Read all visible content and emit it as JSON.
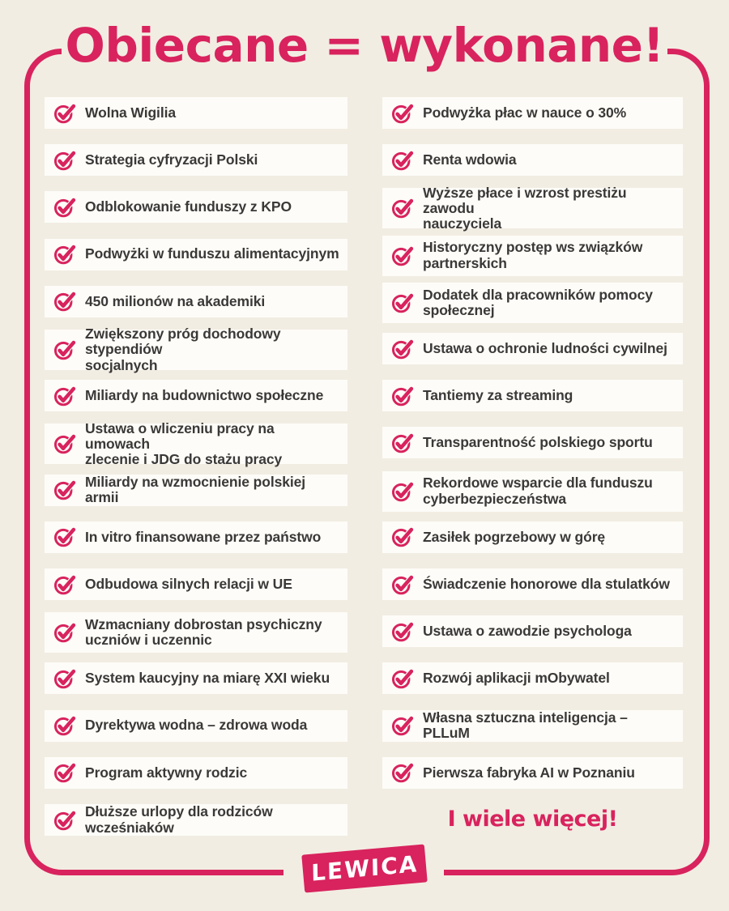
{
  "title": "Obiecane = wykonane!",
  "footer": {
    "more_text": "I wiele więcej!",
    "logo_text": "LEWICA"
  },
  "colors": {
    "accent": "#d8235e",
    "background": "#f2ede2",
    "card": "#fdfcf8",
    "text": "#3b3938"
  },
  "icons": {
    "check": "check-circle-icon"
  },
  "columns": {
    "left": [
      {
        "label": "Wolna Wigilia"
      },
      {
        "label": "Strategia cyfryzacji Polski"
      },
      {
        "label": "Odblokowanie funduszy z KPO"
      },
      {
        "label": "Podwyżki w funduszu alimentacyjnym"
      },
      {
        "label": "450 milionów na akademiki"
      },
      {
        "label": "Zwiększony próg dochodowy stypendiów\nsocjalnych"
      },
      {
        "label": "Miliardy na budownictwo społeczne"
      },
      {
        "label": "Ustawa o wliczeniu pracy na umowach\nzlecenie i JDG do stażu pracy"
      },
      {
        "label": "Miliardy na wzmocnienie polskiej armii"
      },
      {
        "label": "In vitro finansowane przez państwo"
      },
      {
        "label": "Odbudowa silnych relacji w UE"
      },
      {
        "label": "Wzmacniany dobrostan psychiczny\nuczniów i uczennic"
      },
      {
        "label": "System kaucyjny na miarę XXI wieku"
      },
      {
        "label": "Dyrektywa wodna – zdrowa woda"
      },
      {
        "label": "Program aktywny rodzic"
      },
      {
        "label": "Dłuższe urlopy dla rodziców wcześniaków"
      }
    ],
    "right": [
      {
        "label": "Podwyżka płac w nauce o 30%"
      },
      {
        "label": "Renta wdowia"
      },
      {
        "label": "Wyższe płace i wzrost prestiżu zawodu\nnauczyciela"
      },
      {
        "label": "Historyczny postęp ws związków\npartnerskich"
      },
      {
        "label": "Dodatek dla pracowników pomocy\nspołecznej"
      },
      {
        "label": "Ustawa o ochronie ludności cywilnej"
      },
      {
        "label": "Tantiemy za streaming"
      },
      {
        "label": "Transparentność polskiego sportu"
      },
      {
        "label": "Rekordowe wsparcie dla funduszu\ncyberbezpieczeństwa"
      },
      {
        "label": "Zasiłek pogrzebowy w górę"
      },
      {
        "label": "Świadczenie honorowe dla stulatków"
      },
      {
        "label": "Ustawa o zawodzie psychologa"
      },
      {
        "label": "Rozwój aplikacji mObywatel"
      },
      {
        "label": "Własna sztuczna inteligencja – PLLuM"
      },
      {
        "label": "Pierwsza fabryka AI w Poznaniu"
      }
    ]
  }
}
